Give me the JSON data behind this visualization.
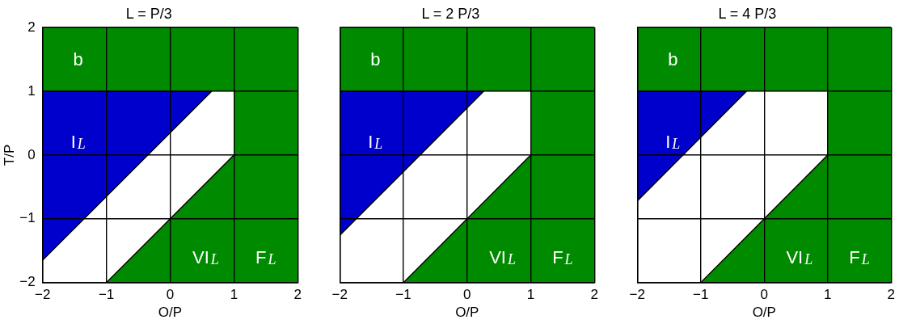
{
  "chart_data": [
    {
      "type": "area",
      "title": "L = P/3",
      "xlabel": "O/P",
      "ylabel": "T/P",
      "xlim": [
        -2,
        2
      ],
      "ylim": [
        -2,
        2
      ],
      "xticks": [
        -2,
        -1,
        0,
        1,
        2
      ],
      "yticks": [
        -2,
        -1,
        0,
        1,
        2
      ],
      "grid": true,
      "series": [
        {
          "name": "I$_{L}$",
          "color": "#0000cc",
          "x": [
            -2,
            0.65,
            -2
          ],
          "values": [
            -1.65,
            1,
            1
          ]
        },
        {
          "name": "VI$_{L}$",
          "color": "#008a00",
          "x": [
            -1,
            1
          ],
          "values": [
            -2,
            0
          ]
        }
      ],
      "bands": [
        {
          "axis": "y",
          "from": 1,
          "to": 2,
          "label": "b",
          "color": "#008a00"
        },
        {
          "axis": "x",
          "from": 1,
          "to": 2,
          "label": "F$_{L}$",
          "color": "#008a00"
        }
      ]
    },
    {
      "type": "area",
      "title": "L = 2 P/3",
      "xlabel": "O/P",
      "xlim": [
        -2,
        2
      ],
      "ylim": [
        -2,
        2
      ],
      "xticks": [
        -2,
        -1,
        0,
        1,
        2
      ],
      "yticks": [
        -2,
        -1,
        0,
        1,
        2
      ],
      "grid": true,
      "tick_labels": "x",
      "series": [
        {
          "name": "I$_{L}$",
          "color": "#0000cc",
          "x": [
            -2,
            0.26,
            -2
          ],
          "values": [
            -1.26,
            1,
            1
          ]
        },
        {
          "name": "VI$_{L}$",
          "color": "#008a00",
          "x": [
            -1,
            1
          ],
          "values": [
            -2,
            0
          ]
        }
      ],
      "bands": [
        {
          "axis": "y",
          "from": 1,
          "to": 2,
          "label": "b",
          "color": "#008a00"
        },
        {
          "axis": "x",
          "from": 1,
          "to": 2,
          "label": "F$_{L}$",
          "color": "#008a00"
        }
      ]
    },
    {
      "type": "area",
      "title": "L = 4 P/3",
      "xlabel": "O/P",
      "xlim": [
        -2,
        2
      ],
      "ylim": [
        -2,
        2
      ],
      "xticks": [
        -2,
        -1,
        0,
        1,
        2
      ],
      "yticks": [
        -2,
        -1,
        0,
        1,
        2
      ],
      "grid": true,
      "tick_labels": "x",
      "series": [
        {
          "name": "I$_{L}$",
          "color": "#0000cc",
          "x": [
            -2,
            -0.28,
            -2
          ],
          "values": [
            -0.72,
            1,
            1
          ]
        },
        {
          "name": "VI$_{L}$",
          "color": "#008a00",
          "x": [
            -1,
            1
          ],
          "values": [
            -2,
            0
          ]
        }
      ],
      "bands": [
        {
          "axis": "y",
          "from": 1,
          "to": 2,
          "label": "b",
          "color": "#008a00"
        },
        {
          "axis": "x",
          "from": 1,
          "to": 2,
          "label": "F$_{L}$",
          "color": "#008a00"
        }
      ]
    }
  ]
}
